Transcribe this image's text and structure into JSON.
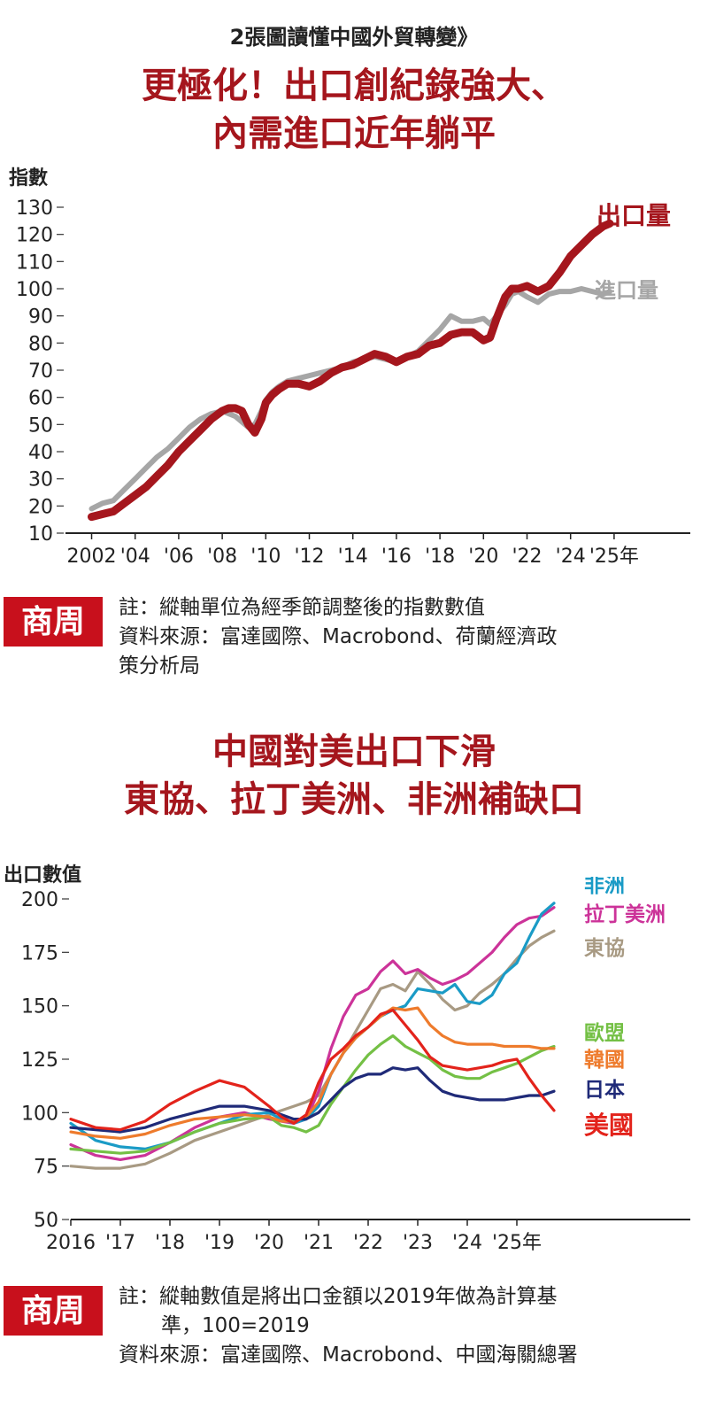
{
  "kicker": "2張圖讀懂中國外貿轉變》",
  "chart1_title": [
    "更極化！出口創紀錄強大、",
    "內需進口近年躺平"
  ],
  "chart2_title": [
    "中國對美出口下滑",
    "東協、拉丁美洲、非洲補缺口"
  ],
  "logo_text": "商周",
  "note1": [
    "註：縱軸單位為經季節調整後的指數數值",
    "資料來源：富達國際、Macrobond、荷蘭經濟政",
    "策分析局"
  ],
  "note2": [
    "註：縱軸數值是將出口金額以2019年做為計算基",
    "準，100=2019",
    "資料來源：富達國際、Macrobond、中國海關總署"
  ],
  "colors": {
    "brand_red": "#c8101c",
    "title_red": "#a5161d"
  },
  "chart_data": [
    {
      "type": "line",
      "title": "更極化！出口創紀錄強大、內需進口近年躺平",
      "ylabel": "指數",
      "ylim": [
        10,
        130
      ],
      "yticks": [
        10,
        20,
        30,
        40,
        50,
        60,
        70,
        80,
        90,
        100,
        110,
        120,
        130
      ],
      "xlim": [
        2000.8,
        2029.5
      ],
      "xticks": [
        {
          "value": 2002,
          "label": "2002"
        },
        {
          "value": 2004,
          "label": "'04"
        },
        {
          "value": 2006,
          "label": "'06"
        },
        {
          "value": 2008,
          "label": "'08"
        },
        {
          "value": 2010,
          "label": "'10"
        },
        {
          "value": 2012,
          "label": "'12"
        },
        {
          "value": 2014,
          "label": "'14"
        },
        {
          "value": 2016,
          "label": "'16"
        },
        {
          "value": 2018,
          "label": "'18"
        },
        {
          "value": 2020,
          "label": "'20"
        },
        {
          "value": 2022,
          "label": "'22"
        },
        {
          "value": 2024,
          "label": "'24"
        },
        {
          "value": 2026,
          "label": "'25年"
        }
      ],
      "series": [
        {
          "name": "進口量",
          "color": "#a6a6a6",
          "width": 6,
          "x": [
            2002,
            2002.5,
            2003,
            2003.5,
            2004,
            2004.5,
            2005,
            2005.5,
            2006,
            2006.5,
            2007,
            2007.5,
            2008,
            2008.3,
            2008.6,
            2008.9,
            2009.2,
            2009.5,
            2009.8,
            2010,
            2010.3,
            2010.6,
            2011,
            2011.5,
            2012,
            2012.5,
            2013,
            2013.5,
            2014,
            2014.5,
            2015,
            2015.5,
            2016,
            2016.5,
            2017,
            2017.5,
            2018,
            2018.5,
            2019,
            2019.5,
            2020,
            2020.3,
            2020.6,
            2021,
            2021.3,
            2021.6,
            2022,
            2022.5,
            2023,
            2023.5,
            2024,
            2024.5,
            2025,
            2025.5,
            2025.8
          ],
          "y": [
            19,
            21,
            22,
            26,
            30,
            34,
            38,
            41,
            45,
            49,
            52,
            54,
            55,
            54,
            53,
            51,
            49,
            50,
            55,
            59,
            62,
            64,
            66,
            67,
            68,
            69,
            70,
            71,
            73,
            74,
            75,
            74,
            73,
            75,
            77,
            81,
            85,
            90,
            88,
            88,
            89,
            87,
            90,
            94,
            98,
            99,
            97,
            95,
            98,
            99,
            99,
            100,
            99,
            98,
            99
          ]
        },
        {
          "name": "出口量",
          "color": "#a5161d",
          "width": 9,
          "x": [
            2002,
            2002.5,
            2003,
            2003.5,
            2004,
            2004.5,
            2005,
            2005.5,
            2006,
            2006.5,
            2007,
            2007.5,
            2008,
            2008.3,
            2008.6,
            2008.9,
            2009.2,
            2009.5,
            2009.8,
            2010,
            2010.3,
            2010.6,
            2011,
            2011.5,
            2012,
            2012.5,
            2013,
            2013.5,
            2014,
            2014.5,
            2015,
            2015.5,
            2016,
            2016.5,
            2017,
            2017.5,
            2018,
            2018.5,
            2019,
            2019.5,
            2020,
            2020.3,
            2020.6,
            2021,
            2021.3,
            2021.6,
            2022,
            2022.5,
            2023,
            2023.5,
            2024,
            2024.5,
            2025,
            2025.5,
            2025.8
          ],
          "y": [
            16,
            17,
            18,
            21,
            24,
            27,
            31,
            35,
            40,
            44,
            48,
            52,
            55,
            56,
            56,
            55,
            50,
            47,
            52,
            58,
            61,
            63,
            65,
            65,
            64,
            66,
            69,
            71,
            72,
            74,
            76,
            75,
            73,
            75,
            76,
            79,
            80,
            83,
            84,
            84,
            81,
            82,
            89,
            97,
            100,
            100,
            101,
            99,
            101,
            106,
            112,
            116,
            120,
            123,
            124
          ]
        }
      ]
    },
    {
      "type": "line",
      "title": "中國對美出口下滑 東協、拉丁美洲、非洲補缺口",
      "ylabel": "出口數值",
      "ylim": [
        50,
        200
      ],
      "yticks": [
        50,
        75,
        100,
        125,
        150,
        175,
        200
      ],
      "xlim": [
        2016,
        2028.5
      ],
      "xticks": [
        {
          "value": 2016,
          "label": "2016"
        },
        {
          "value": 2017,
          "label": "'17"
        },
        {
          "value": 2018,
          "label": "'18"
        },
        {
          "value": 2019,
          "label": "'19"
        },
        {
          "value": 2020,
          "label": "'20"
        },
        {
          "value": 2021,
          "label": "'21"
        },
        {
          "value": 2022,
          "label": "'22"
        },
        {
          "value": 2023,
          "label": "'23"
        },
        {
          "value": 2024,
          "label": "'24"
        },
        {
          "value": 2025,
          "label": "'25年"
        }
      ],
      "x": [
        2016.0,
        2016.5,
        2017.0,
        2017.5,
        2018.0,
        2018.5,
        2019.0,
        2019.5,
        2020.0,
        2020.25,
        2020.5,
        2020.75,
        2021.0,
        2021.25,
        2021.5,
        2021.75,
        2022.0,
        2022.25,
        2022.5,
        2022.75,
        2023.0,
        2023.25,
        2023.5,
        2023.75,
        2024.0,
        2024.25,
        2024.5,
        2024.75,
        2025.0,
        2025.25,
        2025.5,
        2025.75
      ],
      "series": [
        {
          "name": "東協",
          "color": "#a89a83",
          "values": [
            75,
            74,
            74,
            76,
            81,
            87,
            91,
            95,
            99,
            101,
            103,
            105,
            108,
            118,
            128,
            138,
            148,
            158,
            160,
            157,
            166,
            160,
            153,
            148,
            150,
            156,
            160,
            165,
            172,
            178,
            182,
            185
          ]
        },
        {
          "name": "拉丁美洲",
          "color": "#cc3399",
          "values": [
            85,
            80,
            78,
            80,
            86,
            93,
            98,
            100,
            97,
            96,
            95,
            97,
            110,
            130,
            145,
            155,
            158,
            166,
            171,
            165,
            167,
            163,
            160,
            162,
            165,
            170,
            175,
            182,
            188,
            191,
            192,
            196
          ]
        },
        {
          "name": "非洲",
          "color": "#1a9bc6",
          "values": [
            95,
            87,
            84,
            83,
            86,
            91,
            95,
            99,
            100,
            97,
            95,
            97,
            103,
            118,
            128,
            135,
            140,
            145,
            148,
            150,
            158,
            157,
            156,
            160,
            152,
            151,
            155,
            165,
            170,
            182,
            193,
            198
          ]
        },
        {
          "name": "歐盟",
          "color": "#74c045",
          "values": [
            83,
            82,
            81,
            82,
            86,
            91,
            95,
            97,
            98,
            94,
            93,
            91,
            94,
            104,
            112,
            120,
            127,
            132,
            136,
            131,
            128,
            125,
            120,
            117,
            116,
            116,
            119,
            121,
            123,
            126,
            129,
            131
          ]
        },
        {
          "name": "韓國",
          "color": "#ee7b2c",
          "values": [
            91,
            89,
            88,
            90,
            94,
            97,
            98,
            99,
            98,
            96,
            96,
            98,
            105,
            118,
            128,
            135,
            140,
            145,
            149,
            148,
            149,
            141,
            136,
            133,
            132,
            132,
            132,
            131,
            131,
            131,
            130,
            130
          ]
        },
        {
          "name": "日本",
          "color": "#1f2a78",
          "values": [
            93,
            92,
            91,
            93,
            97,
            100,
            103,
            103,
            101,
            99,
            97,
            97,
            100,
            106,
            112,
            116,
            118,
            118,
            121,
            120,
            121,
            115,
            110,
            108,
            107,
            106,
            106,
            106,
            107,
            108,
            108,
            110
          ]
        },
        {
          "name": "美國",
          "color": "#e3231b",
          "values": [
            97,
            93,
            92,
            96,
            104,
            110,
            115,
            112,
            103,
            98,
            95,
            99,
            114,
            125,
            130,
            136,
            140,
            146,
            148,
            141,
            134,
            126,
            122,
            121,
            120,
            121,
            122,
            124,
            125,
            116,
            108,
            101
          ]
        }
      ]
    }
  ]
}
